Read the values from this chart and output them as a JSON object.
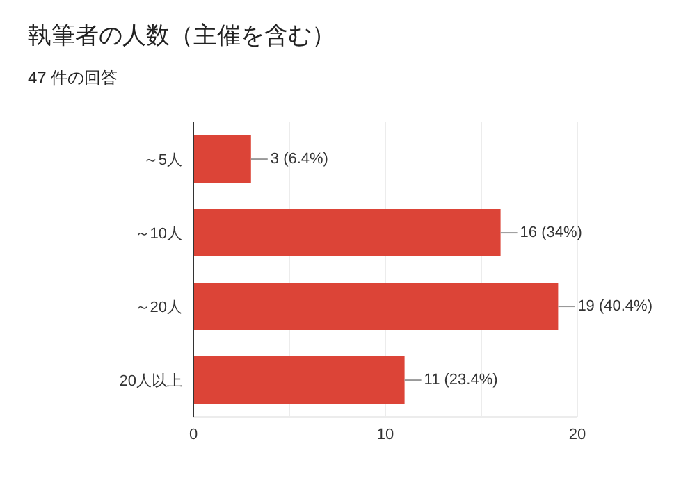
{
  "chart_data": {
    "type": "bar",
    "orientation": "horizontal",
    "title": "執筆者の人数（主催を含む）",
    "subtitle": "47 件の回答",
    "categories": [
      "～5人",
      "～10人",
      "～20人",
      "20人以上"
    ],
    "values": [
      3,
      16,
      19,
      11
    ],
    "color": "#dc4437",
    "value_labels": [
      "3 (6.4%)",
      "16 (34%)",
      "19 (40.4%)",
      "11 (23.4%)"
    ],
    "xlim": [
      0,
      20
    ],
    "xticks": [
      0,
      {
        "value": 5,
        "label": null
      },
      10,
      {
        "value": 15,
        "label": null
      },
      20
    ],
    "grid": "x"
  }
}
